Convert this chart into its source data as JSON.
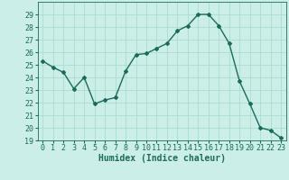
{
  "x": [
    0,
    1,
    2,
    3,
    4,
    5,
    6,
    7,
    8,
    9,
    10,
    11,
    12,
    13,
    14,
    15,
    16,
    17,
    18,
    19,
    20,
    21,
    22,
    23
  ],
  "y": [
    25.3,
    24.8,
    24.4,
    23.1,
    24.0,
    21.9,
    22.2,
    22.4,
    24.5,
    25.8,
    25.9,
    26.3,
    26.7,
    27.7,
    28.1,
    29.0,
    29.0,
    28.1,
    26.7,
    23.7,
    21.9,
    20.0,
    19.8,
    19.2
  ],
  "line_color": "#1a6b5a",
  "marker": "D",
  "marker_size": 2,
  "bg_color": "#cceee8",
  "grid_color": "#aaddcc",
  "xlabel": "Humidex (Indice chaleur)",
  "xlabel_fontsize": 7,
  "ylim": [
    19,
    30
  ],
  "yticks": [
    19,
    20,
    21,
    22,
    23,
    24,
    25,
    26,
    27,
    28,
    29
  ],
  "xticks": [
    0,
    1,
    2,
    3,
    4,
    5,
    6,
    7,
    8,
    9,
    10,
    11,
    12,
    13,
    14,
    15,
    16,
    17,
    18,
    19,
    20,
    21,
    22,
    23
  ],
  "tick_fontsize": 6,
  "linewidth": 1.0
}
